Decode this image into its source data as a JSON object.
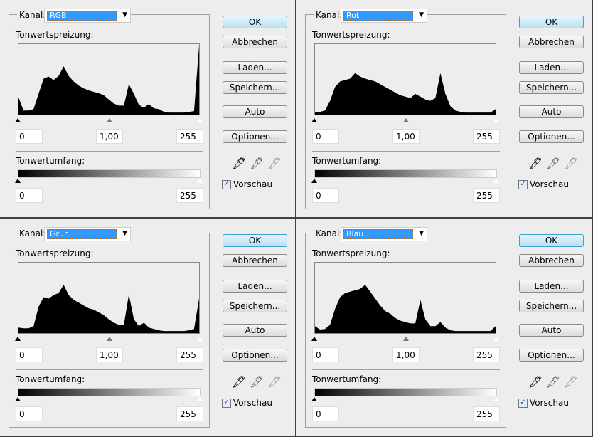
{
  "labels": {
    "kanal": "Kanal:",
    "tonwertspreizung": "Tonwertspreizung:",
    "tonwertumfang": "Tonwertumfang:",
    "vorschau": "Vorschau"
  },
  "buttons": {
    "ok": "OK",
    "abbrechen": "Abbrechen",
    "laden": "Laden...",
    "speichern": "Speichern...",
    "auto": "Auto",
    "optionen": "Optionen..."
  },
  "panels": [
    {
      "channel": "RGB",
      "input_black": "0",
      "input_gamma": "1,00",
      "input_white": "255",
      "output_black": "0",
      "output_white": "255",
      "preview_checked": true,
      "histogram": [
        25,
        6,
        6,
        8,
        30,
        52,
        55,
        50,
        56,
        70,
        56,
        48,
        42,
        38,
        35,
        33,
        31,
        28,
        22,
        16,
        13,
        13,
        44,
        30,
        14,
        10,
        15,
        9,
        8,
        4,
        3,
        3,
        3,
        3,
        4,
        5,
        100
      ]
    },
    {
      "channel": "Rot",
      "input_black": "0",
      "input_gamma": "1,00",
      "input_white": "255",
      "output_black": "0",
      "output_white": "255",
      "preview_checked": true,
      "histogram": [
        3,
        4,
        6,
        20,
        40,
        48,
        50,
        52,
        60,
        55,
        52,
        50,
        48,
        44,
        40,
        36,
        32,
        28,
        26,
        24,
        30,
        26,
        22,
        20,
        24,
        60,
        30,
        12,
        6,
        4,
        3,
        3,
        3,
        3,
        3,
        3,
        8
      ]
    },
    {
      "channel": "Grün",
      "input_black": "0",
      "input_gamma": "1,00",
      "input_white": "255",
      "output_black": "0",
      "output_white": "255",
      "preview_checked": true,
      "histogram": [
        8,
        7,
        7,
        10,
        38,
        52,
        50,
        55,
        58,
        70,
        55,
        48,
        44,
        40,
        36,
        34,
        30,
        26,
        20,
        15,
        12,
        12,
        56,
        20,
        10,
        15,
        8,
        6,
        4,
        3,
        3,
        3,
        3,
        3,
        4,
        6,
        50
      ]
    },
    {
      "channel": "Blau",
      "input_black": "0",
      "input_gamma": "1,00",
      "input_white": "255",
      "output_black": "0",
      "output_white": "255",
      "preview_checked": true,
      "histogram": [
        10,
        5,
        6,
        12,
        35,
        52,
        58,
        60,
        62,
        64,
        70,
        60,
        50,
        40,
        32,
        28,
        22,
        18,
        16,
        14,
        14,
        48,
        20,
        10,
        10,
        16,
        8,
        4,
        3,
        3,
        3,
        3,
        3,
        3,
        3,
        3,
        10
      ]
    }
  ],
  "icons": [
    "black-eyedropper-icon",
    "gray-eyedropper-icon",
    "white-eyedropper-icon"
  ]
}
